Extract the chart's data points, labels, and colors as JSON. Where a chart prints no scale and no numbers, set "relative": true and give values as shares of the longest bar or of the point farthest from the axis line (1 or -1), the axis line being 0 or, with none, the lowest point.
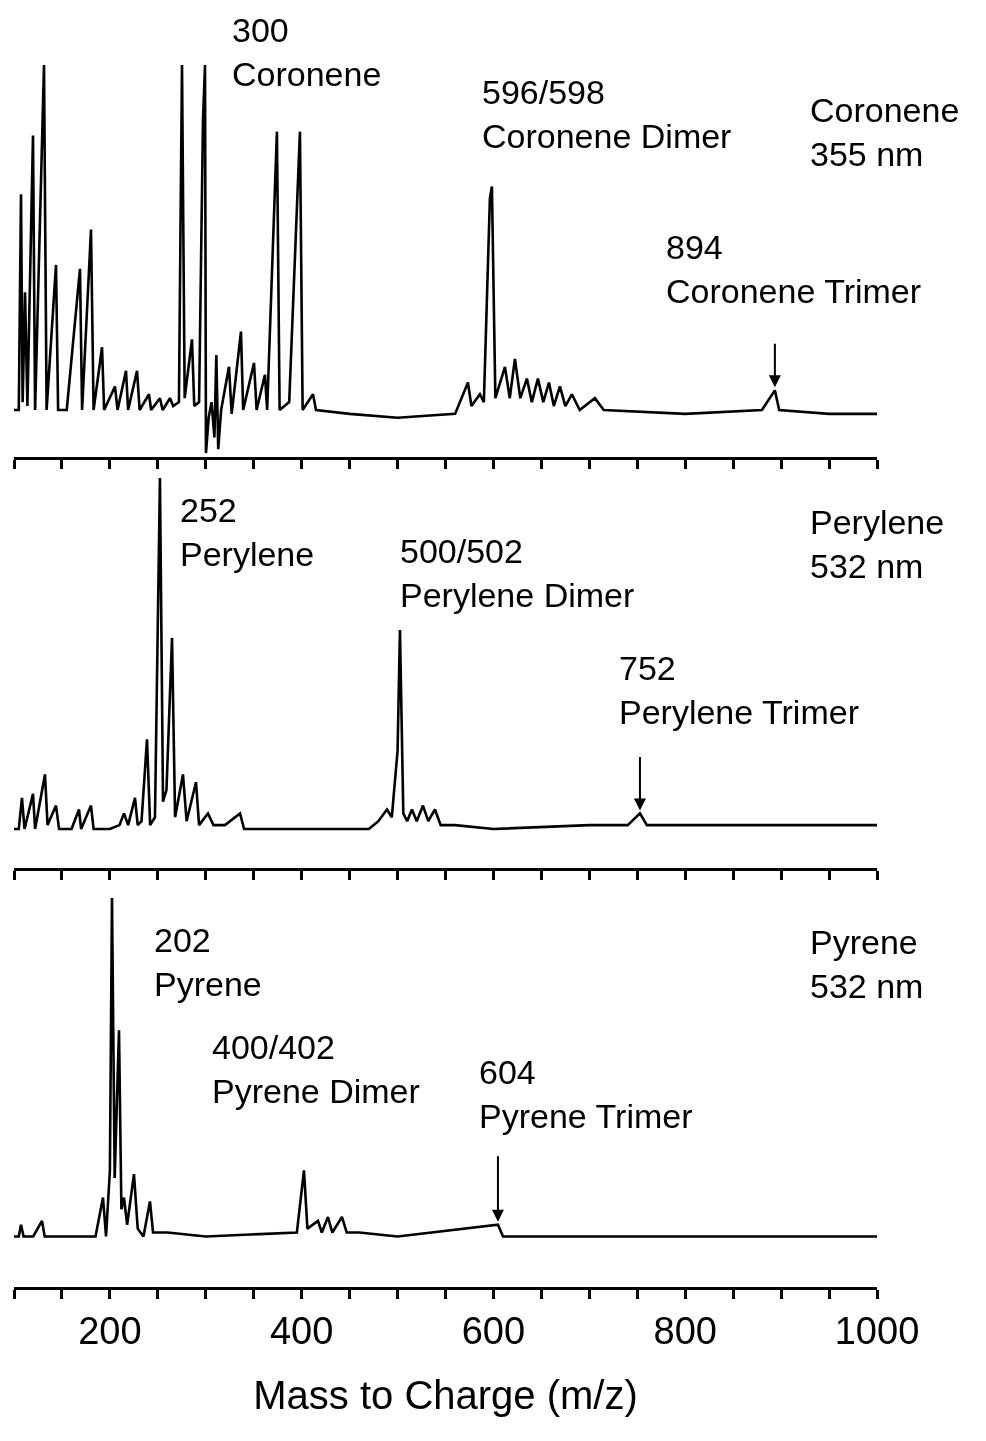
{
  "chart_data": [
    {
      "type": "line",
      "relative": true,
      "xlim": [
        100,
        1000
      ],
      "xticks": [
        {
          "value": 100,
          "label": null
        },
        {
          "value": 150,
          "label": null
        },
        200,
        {
          "value": 250,
          "label": null
        },
        {
          "value": 300,
          "label": null
        },
        {
          "value": 350,
          "label": null
        },
        400,
        {
          "value": 450,
          "label": null
        },
        {
          "value": 500,
          "label": null
        },
        {
          "value": 550,
          "label": null
        },
        600,
        {
          "value": 650,
          "label": null
        },
        {
          "value": 700,
          "label": null
        },
        {
          "value": 750,
          "label": null
        },
        800,
        {
          "value": 850,
          "label": null
        },
        {
          "value": 900,
          "label": null
        },
        {
          "value": 950,
          "label": null
        },
        1000
      ],
      "tick_labels": false,
      "series": [
        {
          "color": "#000000",
          "x": [
            100,
            105,
            107.3,
            109,
            111.5,
            114,
            119.8,
            122,
            131.3,
            134,
            143.8,
            146,
            155,
            168.8,
            171,
            180.3,
            183,
            191.8,
            194,
            205.3,
            208,
            216.8,
            219,
            228.3,
            231,
            240.8,
            243,
            252.2,
            255,
            262.7,
            266,
            272,
            275.2,
            278,
            285.6,
            288,
            293,
            297.1,
            299.2,
            300.2,
            303,
            306,
            309,
            311,
            313,
            316,
            324.2,
            327,
            336.7,
            339,
            350.3,
            353,
            361.7,
            364,
            374.2,
            377,
            387,
            398.2,
            401,
            411.8,
            415,
            450,
            500,
            560,
            573.4,
            577,
            585.9,
            590,
            596.3,
            598.4,
            602,
            612,
            617,
            622.4,
            628,
            634.9,
            640,
            646.4,
            652,
            657.9,
            663,
            669.3,
            675,
            681.8,
            690,
            705.8,
            715,
            800,
            880,
            893.5,
            898,
            950,
            1000
          ],
          "values": [
            0.12,
            0.12,
            0.67,
            0.14,
            0.42,
            0.13,
            0.82,
            0.12,
            1,
            0.12,
            0.49,
            0.12,
            0.12,
            0.48,
            0.12,
            0.58,
            0.12,
            0.28,
            0.12,
            0.18,
            0.12,
            0.22,
            0.12,
            0.22,
            0.12,
            0.16,
            0.12,
            0.15,
            0.12,
            0.15,
            0.13,
            0.14,
            1,
            0.15,
            0.3,
            0.13,
            0.14,
            0.86,
            1,
            0.01,
            0.1,
            0.14,
            0.05,
            0.26,
            0.02,
            0.12,
            0.23,
            0.11,
            0.32,
            0.12,
            0.24,
            0.12,
            0.21,
            0.12,
            0.83,
            0.12,
            0.14,
            0.83,
            0.12,
            0.16,
            0.12,
            0.11,
            0.1,
            0.11,
            0.19,
            0.13,
            0.16,
            0.14,
            0.66,
            0.69,
            0.15,
            0.23,
            0.15,
            0.25,
            0.15,
            0.2,
            0.14,
            0.2,
            0.14,
            0.19,
            0.13,
            0.18,
            0.13,
            0.16,
            0.12,
            0.15,
            0.12,
            0.11,
            0.12,
            0.17,
            0.12,
            0.11,
            0.11
          ]
        }
      ],
      "annotations": [
        {
          "text": "300\nCoronene",
          "x": 300,
          "y": 1
        },
        {
          "text": "596/598\nCoronene Dimer",
          "x": 597,
          "y": 0.69
        },
        {
          "text": "894\nCoronene Trimer",
          "x": 893.5,
          "y": 0.17
        },
        "Coronene\n355 nm"
      ]
    },
    {
      "type": "line",
      "relative": true,
      "xlim": [
        100,
        1000
      ],
      "xticks": [
        {
          "value": 100,
          "label": null
        },
        {
          "value": 150,
          "label": null
        },
        200,
        {
          "value": 250,
          "label": null
        },
        {
          "value": 300,
          "label": null
        },
        {
          "value": 350,
          "label": null
        },
        400,
        {
          "value": 450,
          "label": null
        },
        {
          "value": 500,
          "label": null
        },
        {
          "value": 550,
          "label": null
        },
        600,
        {
          "value": 650,
          "label": null
        },
        {
          "value": 700,
          "label": null
        },
        {
          "value": 750,
          "label": null
        },
        800,
        {
          "value": 850,
          "label": null
        },
        {
          "value": 900,
          "label": null
        },
        {
          "value": 950,
          "label": null
        },
        1000
      ],
      "tick_labels": false,
      "series": [
        {
          "color": "#000000",
          "x": [
            100,
            105,
            108.3,
            111,
            119.8,
            122,
            132.3,
            135,
            143.8,
            147,
            160,
            167.8,
            170,
            180.3,
            183,
            200,
            210,
            214.7,
            219,
            226.2,
            229,
            233,
            238.7,
            242,
            247,
            252.2,
            255.4,
            259,
            264.8,
            268,
            276.2,
            280,
            289.8,
            293,
            302.3,
            308,
            320,
            335.7,
            340,
            400,
            470,
            480,
            488.9,
            494,
            500,
            502.5,
            506,
            510,
            515,
            520,
            526.5,
            532,
            539,
            545,
            560,
            600,
            700,
            740,
            752.8,
            760,
            800,
            1000
          ],
          "values": [
            0.1,
            0.1,
            0.18,
            0.1,
            0.19,
            0.1,
            0.24,
            0.11,
            0.16,
            0.1,
            0.1,
            0.15,
            0.1,
            0.16,
            0.1,
            0.1,
            0.11,
            0.14,
            0.11,
            0.18,
            0.11,
            0.12,
            0.33,
            0.11,
            0.13,
            1,
            0.17,
            0.2,
            0.59,
            0.13,
            0.24,
            0.12,
            0.22,
            0.11,
            0.14,
            0.11,
            0.11,
            0.14,
            0.1,
            0.1,
            0.1,
            0.12,
            0.15,
            0.13,
            0.3,
            0.61,
            0.14,
            0.12,
            0.15,
            0.12,
            0.16,
            0.12,
            0.15,
            0.11,
            0.11,
            0.1,
            0.11,
            0.11,
            0.14,
            0.11,
            0.11,
            0.11
          ]
        }
      ],
      "annotations": [
        {
          "text": "252\nPerylene",
          "x": 252.2,
          "y": 1
        },
        {
          "text": "500/502\nPerylene Dimer",
          "x": 502.5,
          "y": 0.61
        },
        {
          "text": "752\nPerylene Trimer",
          "x": 752.8,
          "y": 0.14
        },
        "Perylene\n532 nm"
      ]
    },
    {
      "type": "line",
      "relative": true,
      "xlim": [
        100,
        1000
      ],
      "xticks": [
        {
          "value": 100,
          "label": null
        },
        {
          "value": 150,
          "label": null
        },
        200,
        {
          "value": 250,
          "label": null
        },
        {
          "value": 300,
          "label": null
        },
        {
          "value": 350,
          "label": null
        },
        400,
        {
          "value": 450,
          "label": null
        },
        {
          "value": 500,
          "label": null
        },
        {
          "value": 550,
          "label": null
        },
        600,
        {
          "value": 650,
          "label": null
        },
        {
          "value": 700,
          "label": null
        },
        {
          "value": 750,
          "label": null
        },
        800,
        {
          "value": 850,
          "label": null
        },
        {
          "value": 900,
          "label": null
        },
        {
          "value": 950,
          "label": null
        },
        1000
      ],
      "tick_labels": "x",
      "xlabel": "Mass to Charge (m/z)",
      "series": [
        {
          "color": "#000000",
          "x": [
            100,
            105,
            107.3,
            110,
            120,
            129.2,
            132,
            185,
            192.8,
            196,
            200,
            202.2,
            205,
            209.5,
            212,
            214.7,
            218,
            225.1,
            229,
            235,
            241.8,
            245,
            260,
            300,
            395,
            402.4,
            406,
            417,
            421,
            427.4,
            432,
            442,
            447,
            460,
            500,
            604.7,
            610,
            700,
            1000
          ],
          "values": [
            0.13,
            0.13,
            0.16,
            0.13,
            0.13,
            0.17,
            0.13,
            0.13,
            0.23,
            0.13,
            0.3,
            1,
            0.28,
            0.66,
            0.2,
            0.23,
            0.16,
            0.29,
            0.15,
            0.13,
            0.22,
            0.14,
            0.14,
            0.13,
            0.14,
            0.3,
            0.15,
            0.17,
            0.14,
            0.18,
            0.14,
            0.18,
            0.14,
            0.14,
            0.13,
            0.16,
            0.13,
            0.13,
            0.13
          ]
        }
      ],
      "annotations": [
        {
          "text": "202\nPyrene",
          "x": 202.2,
          "y": 1
        },
        {
          "text": "400/402\nPyrene Dimer",
          "x": 402.4,
          "y": 0.3
        },
        {
          "text": "604\nPyrene Trimer",
          "x": 604.7,
          "y": 0.16
        },
        "Pyrene\n532 nm"
      ]
    }
  ]
}
